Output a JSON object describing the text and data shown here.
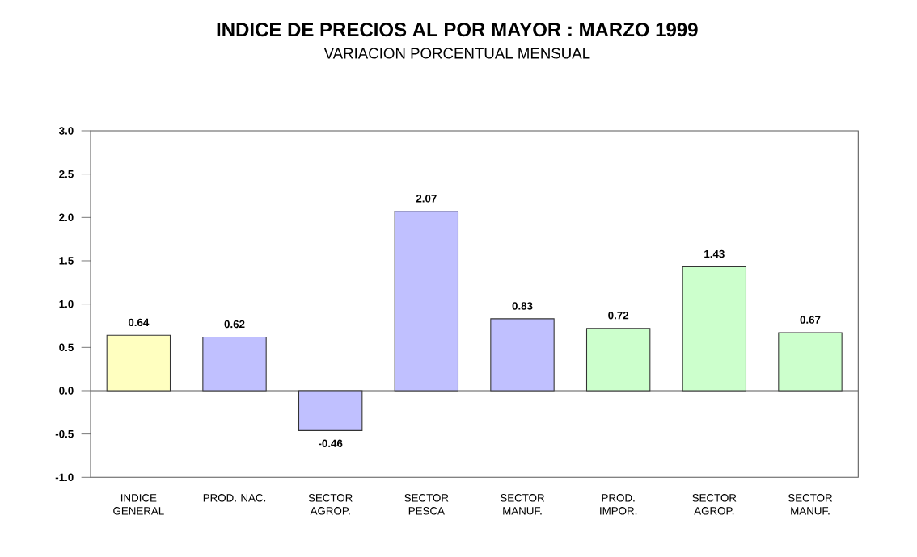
{
  "chart_data": {
    "type": "bar",
    "title": "INDICE DE PRECIOS AL POR MAYOR : MARZO 1999",
    "subtitle": "VARIACION PORCENTUAL MENSUAL",
    "categories": [
      "INDICE GENERAL",
      "PROD. NAC.",
      "SECTOR AGROP.",
      "SECTOR PESCA",
      "SECTOR MANUF.",
      "PROD. IMPOR.",
      "SECTOR AGROP.",
      "SECTOR MANUF."
    ],
    "values": [
      0.64,
      0.62,
      -0.46,
      2.07,
      0.83,
      0.72,
      1.43,
      0.67
    ],
    "colors": [
      "#ffffc0",
      "#c0c0ff",
      "#c0c0ff",
      "#c0c0ff",
      "#c0c0ff",
      "#ccffcc",
      "#ccffcc",
      "#ccffcc"
    ],
    "ylim": [
      -1.0,
      3.0
    ],
    "yticks": [
      {
        "value": -1.0,
        "label": "-1.0"
      },
      {
        "value": -0.5,
        "label": "-0.5"
      },
      {
        "value": 0,
        "label": "0.0"
      },
      {
        "value": 0.5,
        "label": "0.5"
      },
      {
        "value": 1.0,
        "label": "1.0"
      },
      {
        "value": 1.5,
        "label": "1.5"
      },
      {
        "value": 2.0,
        "label": "2.0"
      },
      {
        "value": 2.5,
        "label": "2.5"
      },
      {
        "value": 3.0,
        "label": "3.0"
      }
    ],
    "data_labels": true
  }
}
